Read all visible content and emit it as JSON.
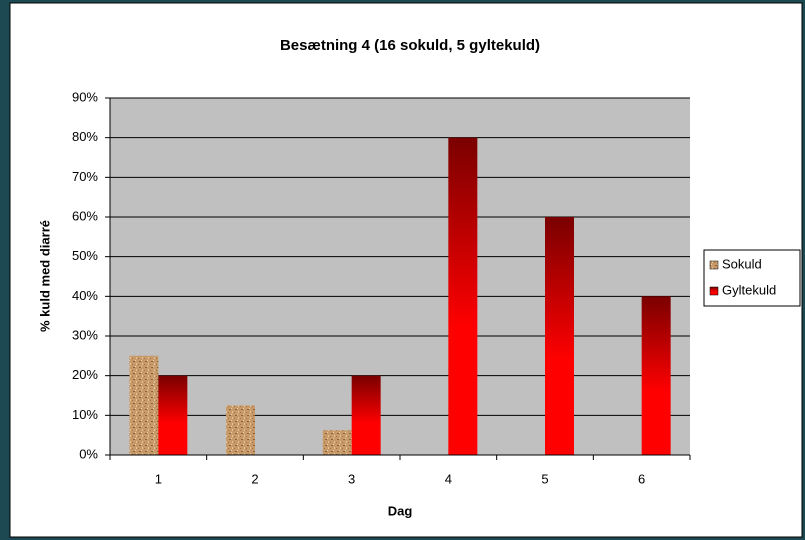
{
  "chart_data": {
    "type": "bar",
    "title": "Besætning 4 (16 sokuld, 5 gyltekuld)",
    "x_label": "Dag",
    "y_label": "% kuld med diarré",
    "categories": [
      "1",
      "2",
      "3",
      "4",
      "5",
      "6"
    ],
    "series": [
      {
        "name": "Sokuld",
        "color": "#c89a6a",
        "values": [
          25,
          12.5,
          6.25,
          0,
          0,
          0
        ]
      },
      {
        "name": "Gyltekuld",
        "color": "#cc0000",
        "values": [
          20,
          0,
          20,
          80,
          60,
          40
        ]
      }
    ],
    "ylim": [
      0,
      90
    ],
    "yticks": [
      {
        "value": 0,
        "label": "0%"
      },
      {
        "value": 10,
        "label": "10%"
      },
      {
        "value": 20,
        "label": "20%"
      },
      {
        "value": 30,
        "label": "30%"
      },
      {
        "value": 40,
        "label": "40%"
      },
      {
        "value": 50,
        "label": "50%"
      },
      {
        "value": 60,
        "label": "60%"
      },
      {
        "value": 70,
        "label": "70%"
      },
      {
        "value": 80,
        "label": "80%"
      },
      {
        "value": 90,
        "label": "90%"
      }
    ],
    "grid": true,
    "legend": "right"
  }
}
